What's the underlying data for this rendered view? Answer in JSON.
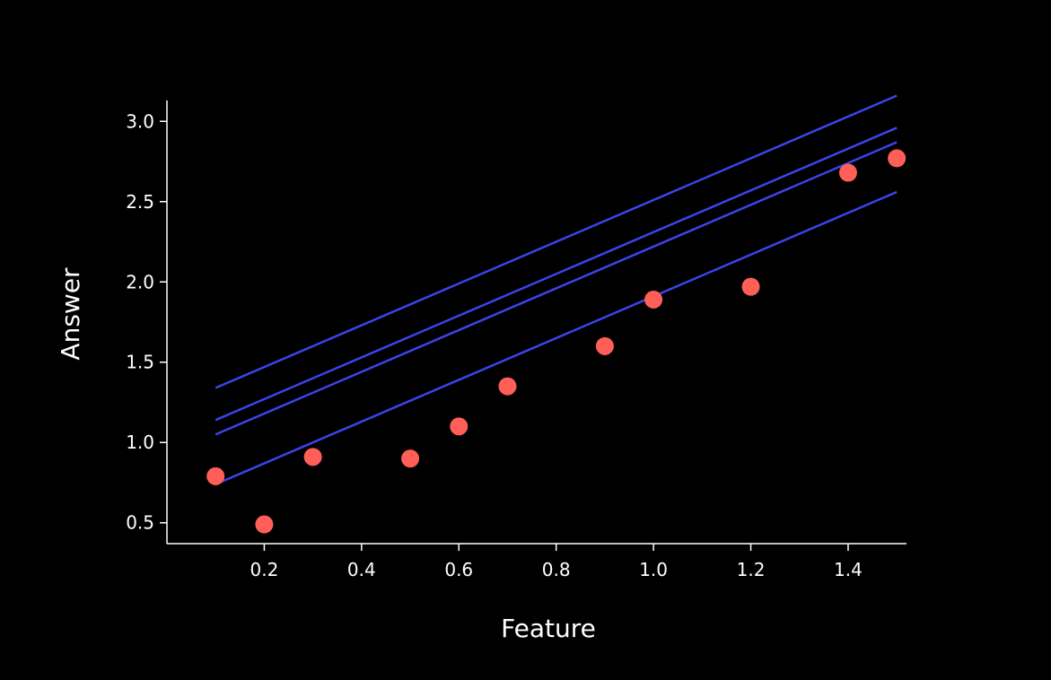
{
  "chart_data": {
    "type": "scatter",
    "xlabel": "Feature",
    "ylabel": "Answer",
    "xlim": [
      0.0,
      1.52
    ],
    "ylim": [
      0.37,
      3.13
    ],
    "xticks": [
      0.2,
      0.4,
      0.6,
      0.8,
      1.0,
      1.2,
      1.4
    ],
    "xtick_labels": [
      "0.2",
      "0.4",
      "0.6",
      "0.8",
      "1.0",
      "1.2",
      "1.4"
    ],
    "yticks": [
      0.5,
      1.0,
      1.5,
      2.0,
      2.5,
      3.0
    ],
    "ytick_labels": [
      "0.5",
      "1.0",
      "1.5",
      "2.0",
      "2.5",
      "3.0"
    ],
    "grid": false,
    "points": {
      "x": [
        0.1,
        0.2,
        0.3,
        0.5,
        0.6,
        0.7,
        0.9,
        1.0,
        1.2,
        1.4,
        1.5
      ],
      "y": [
        0.79,
        0.49,
        0.91,
        0.9,
        1.1,
        1.35,
        1.6,
        1.89,
        1.97,
        2.68,
        2.77
      ],
      "color": "#ff5f57"
    },
    "lines": [
      {
        "x": [
          0.1,
          1.5
        ],
        "y": [
          1.34,
          3.16
        ]
      },
      {
        "x": [
          0.1,
          1.5
        ],
        "y": [
          1.14,
          2.96
        ]
      },
      {
        "x": [
          0.1,
          1.5
        ],
        "y": [
          1.05,
          2.87
        ]
      },
      {
        "x": [
          0.1,
          1.5
        ],
        "y": [
          0.74,
          2.56
        ]
      }
    ],
    "line_color": "#3b44e8",
    "axis_color": "#ffffff",
    "background": "#000000"
  }
}
